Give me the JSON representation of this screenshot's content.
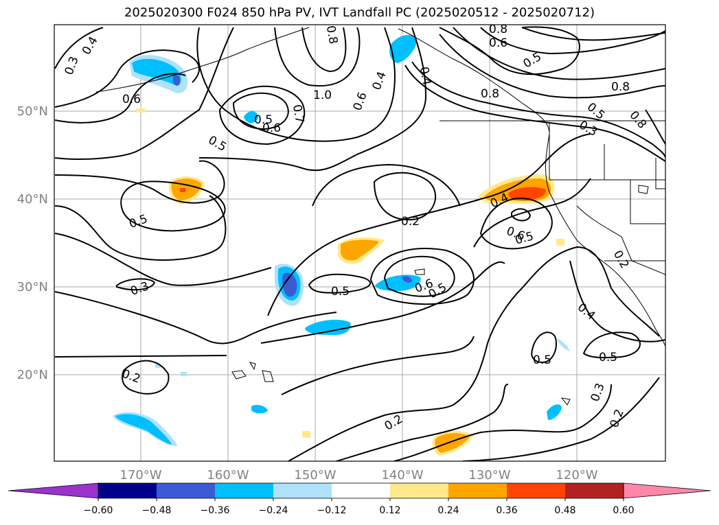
{
  "title": "2025020300 F024 850 hPa PV, IVT Landfall PC (2025020512 - 2025020712)",
  "axes": {
    "lon_ticks": [
      "170°W",
      "160°W",
      "150°W",
      "140°W",
      "130°W",
      "120°W"
    ],
    "lat_ticks": [
      "50°N",
      "40°N",
      "30°N",
      "20°N"
    ],
    "tick_color": "#808080"
  },
  "contour_labels": [
    "0.3",
    "0.4",
    "0.6",
    "0.8",
    "0.5",
    "0.6",
    "0.7",
    "1.0",
    "0.6",
    "0.4",
    "0.4",
    "0.8",
    "0.6",
    "0.8",
    "0.5",
    "0.8",
    "0.5",
    "0.3",
    "0.8",
    "0.5",
    "0.5",
    "0.2",
    "0.4",
    "0.6",
    "0.5",
    "0.3",
    "0.5",
    "0.6",
    "0.5",
    "0.2",
    "0.4",
    "0.5",
    "0.5",
    "0.3",
    "0.2",
    "0.2",
    "0.2"
  ],
  "colorbar": {
    "colors": [
      "#9933cc",
      "#00008b",
      "#3b5bd5",
      "#00bfff",
      "#aee2fa",
      "#ffffff",
      "#ffe98a",
      "#ffa500",
      "#ff4500",
      "#b22222",
      "#ff88aa"
    ],
    "tick_labels": [
      "−0.60",
      "−0.48",
      "−0.36",
      "−0.24",
      "−0.12",
      "0.12",
      "0.24",
      "0.36",
      "0.48",
      "0.60"
    ]
  }
}
